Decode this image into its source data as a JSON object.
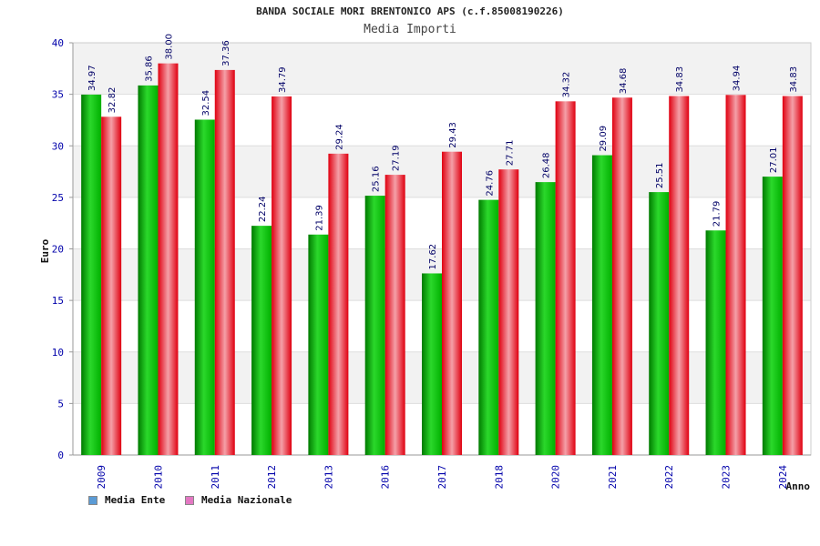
{
  "chart_data": {
    "type": "bar",
    "title": "BANDA SOCIALE MORI BRENTONICO APS (c.f.85008190226)",
    "subtitle": "Media Importi",
    "xlabel": "Anno",
    "ylabel": "Euro",
    "ylim": [
      0,
      40
    ],
    "yticks": [
      0,
      5,
      10,
      15,
      20,
      25,
      30,
      35,
      40
    ],
    "grid": true,
    "legend_position": "bottom-left",
    "categories": [
      "2009",
      "2010",
      "2011",
      "2012",
      "2013",
      "2016",
      "2017",
      "2018",
      "2020",
      "2021",
      "2022",
      "2023",
      "2024"
    ],
    "series": [
      {
        "name": "Media Ente",
        "values": [
          34.97,
          35.86,
          32.54,
          22.24,
          21.39,
          25.16,
          17.62,
          24.76,
          26.48,
          29.09,
          25.51,
          21.79,
          27.01
        ],
        "labels": [
          "34.97",
          "35.86",
          "32.54",
          "22.24",
          "21.39",
          "25.16",
          "17.62",
          "24.76",
          "26.48",
          "29.09",
          "25.51",
          "21.79",
          "27.01"
        ],
        "color": "#00bb00",
        "legend_color": "#5b9bd5"
      },
      {
        "name": "Media Nazionale",
        "values": [
          32.82,
          38.0,
          37.36,
          34.79,
          29.24,
          27.19,
          29.43,
          27.71,
          34.32,
          34.68,
          34.83,
          34.94,
          34.83
        ],
        "labels": [
          "32.82",
          "38.00",
          "37.36",
          "34.79",
          "29.24",
          "27.19",
          "29.43",
          "27.71",
          "34.32",
          "34.68",
          "34.83",
          "34.94",
          "34.83"
        ],
        "color": "#ee0011",
        "legend_color": "#e377c2"
      }
    ]
  }
}
